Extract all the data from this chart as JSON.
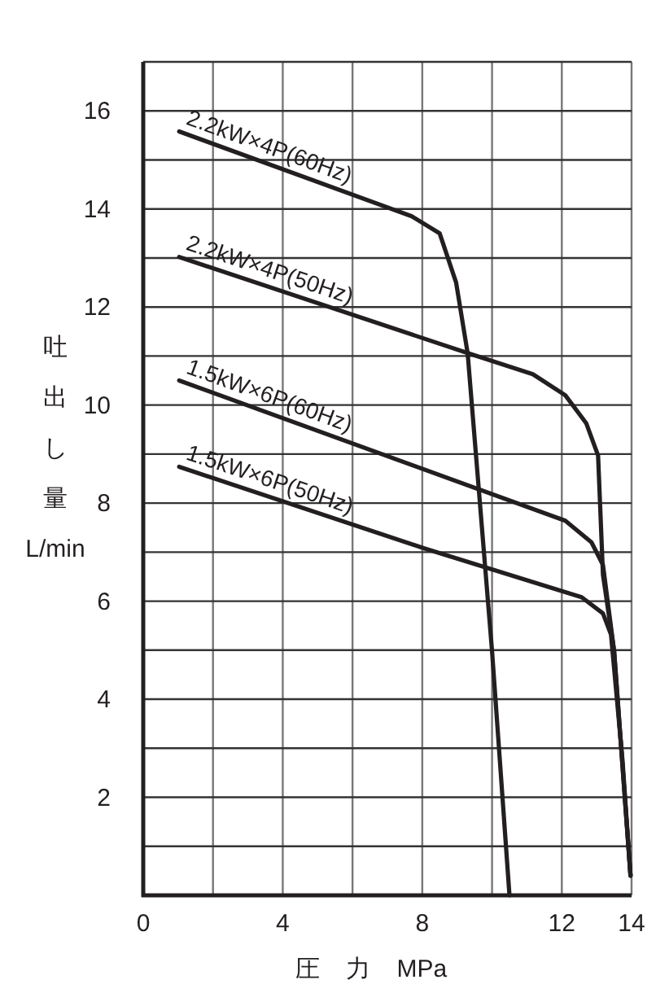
{
  "chart_data": {
    "type": "line",
    "xlabel": "圧 力 MPa",
    "ylabel": "吐出し量 L/min",
    "xlim": [
      0,
      14
    ],
    "ylim": [
      0,
      17
    ],
    "xticks": [
      0,
      {
        "value": 2,
        "label": null
      },
      4,
      {
        "value": 6,
        "label": null
      },
      8,
      {
        "value": 10,
        "label": null
      },
      12,
      14
    ],
    "yticks": [
      {
        "value": 0,
        "label": null
      },
      {
        "value": 1,
        "label": null
      },
      2,
      {
        "value": 3,
        "label": null
      },
      4,
      {
        "value": 5,
        "label": null
      },
      6,
      {
        "value": 7,
        "label": null
      },
      8,
      {
        "value": 9,
        "label": null
      },
      10,
      {
        "value": 11,
        "label": null
      },
      12,
      {
        "value": 13,
        "label": null
      },
      14,
      {
        "value": 15,
        "label": null
      },
      16,
      {
        "value": 17,
        "label": null
      }
    ],
    "grid": true,
    "marker": "none",
    "line_style": "solid",
    "series": [
      {
        "name": "2.2kW×4P(60Hz)",
        "color": "#231f20",
        "x": [
          1.03,
          7.7,
          8.5,
          8.97,
          9.3,
          10.0,
          10.5
        ],
        "values": [
          15.58,
          13.85,
          13.5,
          12.5,
          11.06,
          4.98,
          0
        ]
      },
      {
        "name": "2.2kW×4P(50Hz)",
        "color": "#231f20",
        "x": [
          1.03,
          9.3,
          11.17,
          12.1,
          12.7,
          13.04,
          13.18,
          13.5,
          13.97
        ],
        "values": [
          13.02,
          11.06,
          10.63,
          10.2,
          9.63,
          8.97,
          6.54,
          4.98,
          0.4
        ]
      },
      {
        "name": "1.5kW×6P(60Hz)",
        "color": "#231f20",
        "x": [
          1.03,
          12.1,
          12.85,
          13.18,
          13.5,
          13.97
        ],
        "values": [
          10.5,
          7.64,
          7.2,
          6.74,
          4.98,
          0.4
        ]
      },
      {
        "name": "1.5kW×6P(50Hz)",
        "color": "#231f20",
        "x": [
          1.03,
          8.04,
          12.57,
          13.18,
          13.41,
          13.74,
          13.97
        ],
        "values": [
          8.74,
          7.08,
          6.08,
          5.75,
          5.32,
          2.76,
          0.4
        ]
      }
    ]
  }
}
